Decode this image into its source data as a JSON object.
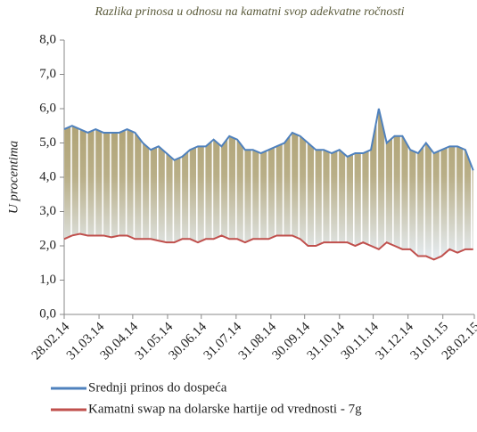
{
  "chart_data": {
    "type": "line",
    "title": "Razlika prinosa u odnosu na kamatni svop adekvatne ročnosti",
    "y_label": "U procentima",
    "x": [
      "28.02.14",
      "07.03.14",
      "14.03.14",
      "21.03.14",
      "28.03.14",
      "04.04.14",
      "11.04.14",
      "18.04.14",
      "25.04.14",
      "02.05.14",
      "09.05.14",
      "16.05.14",
      "23.05.14",
      "30.05.14",
      "06.06.14",
      "13.06.14",
      "20.06.14",
      "27.06.14",
      "04.07.14",
      "11.07.14",
      "18.07.14",
      "25.07.14",
      "01.08.14",
      "08.08.14",
      "15.08.14",
      "22.08.14",
      "29.08.14",
      "05.09.14",
      "12.09.14",
      "19.09.14",
      "26.09.14",
      "03.10.14",
      "10.10.14",
      "17.10.14",
      "24.10.14",
      "31.10.14",
      "07.11.14",
      "14.11.14",
      "21.11.14",
      "28.11.14",
      "05.12.14",
      "12.12.14",
      "19.12.14",
      "26.12.14",
      "02.01.15",
      "09.01.15",
      "16.01.15",
      "23.01.15",
      "30.01.15",
      "06.02.15",
      "13.02.15",
      "20.02.15",
      "27.02.15"
    ],
    "series": [
      {
        "name": "Srednji prinos do dospeća",
        "color": "#4f81bd",
        "values": [
          5.4,
          5.5,
          5.4,
          5.3,
          5.4,
          5.3,
          5.3,
          5.3,
          5.4,
          5.3,
          5.0,
          4.8,
          4.9,
          4.7,
          4.5,
          4.6,
          4.8,
          4.9,
          4.9,
          5.1,
          4.9,
          5.2,
          5.1,
          4.8,
          4.8,
          4.7,
          4.8,
          4.9,
          5.0,
          5.3,
          5.2,
          5.0,
          4.8,
          4.8,
          4.7,
          4.8,
          4.6,
          4.7,
          4.7,
          4.8,
          6.0,
          5.0,
          5.2,
          5.2,
          4.8,
          4.7,
          5.0,
          4.7,
          4.8,
          4.9,
          4.9,
          4.8,
          4.2
        ]
      },
      {
        "name": "Kamatni swap na dolarske hartije od vrednosti - 7g",
        "color": "#c0504d",
        "values": [
          2.2,
          2.3,
          2.35,
          2.3,
          2.3,
          2.3,
          2.25,
          2.3,
          2.3,
          2.2,
          2.2,
          2.2,
          2.15,
          2.1,
          2.1,
          2.2,
          2.2,
          2.1,
          2.2,
          2.2,
          2.3,
          2.2,
          2.2,
          2.1,
          2.2,
          2.2,
          2.2,
          2.3,
          2.3,
          2.3,
          2.2,
          2.0,
          2.0,
          2.1,
          2.1,
          2.1,
          2.1,
          2.0,
          2.1,
          2.0,
          1.9,
          2.1,
          2.0,
          1.9,
          1.9,
          1.7,
          1.7,
          1.6,
          1.7,
          1.9,
          1.8,
          1.9,
          1.9
        ]
      }
    ],
    "xlim": [
      "28.02.14",
      "28.02.15"
    ],
    "xticks": [
      "28.02.14",
      "31.03.14",
      "30.04.14",
      "31.05.14",
      "30.06.14",
      "31.07.14",
      "31.08.14",
      "30.09.14",
      "31.10.14",
      "30.11.14",
      "31.12.14",
      "31.01.15",
      "28.02.15"
    ],
    "ylim": [
      0,
      8
    ],
    "yticks": [
      {
        "value": 0,
        "label": "0,0"
      },
      {
        "value": 1,
        "label": "1,0"
      },
      {
        "value": 2,
        "label": "2,0"
      },
      {
        "value": 3,
        "label": "3,0"
      },
      {
        "value": 4,
        "label": "4,0"
      },
      {
        "value": 5,
        "label": "5,0"
      },
      {
        "value": 6,
        "label": "6,0"
      },
      {
        "value": 7,
        "label": "7,0"
      },
      {
        "value": 8,
        "label": "8,0"
      }
    ],
    "fill_between": true,
    "legend": "bottom"
  }
}
